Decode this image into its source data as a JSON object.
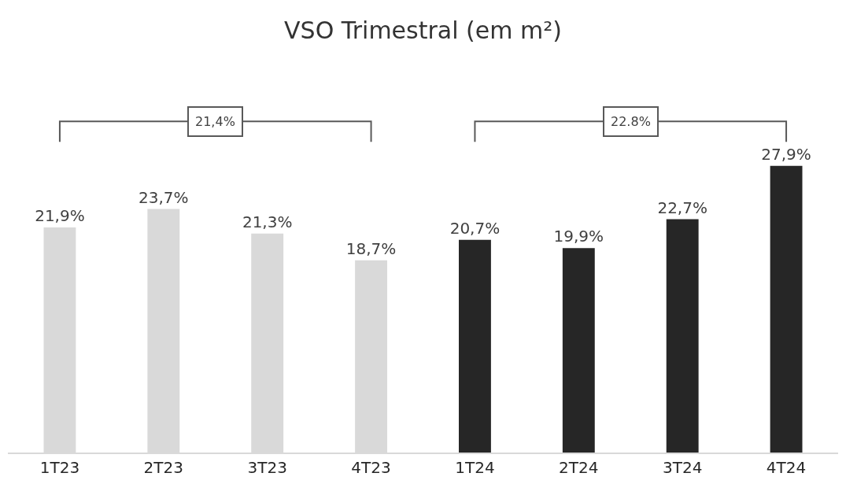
{
  "chart_data": {
    "type": "bar",
    "title": "VSO Trimestral (em m²)",
    "categories": [
      "1T23",
      "2T23",
      "3T23",
      "4T23",
      "1T24",
      "2T24",
      "3T24",
      "4T24"
    ],
    "values": [
      21.9,
      23.7,
      21.3,
      18.7,
      20.7,
      19.9,
      22.7,
      27.9
    ],
    "colors": [
      "#d9d9d9",
      "#d9d9d9",
      "#d9d9d9",
      "#d9d9d9",
      "#262626",
      "#262626",
      "#262626",
      "#262626"
    ],
    "value_labels": [
      "21,9%",
      "23,7%",
      "21,3%",
      "18,7%",
      "20,7%",
      "19,9%",
      "22,7%",
      "27,9%"
    ],
    "tick_labels": "x",
    "legend": false,
    "annotations": [
      "21,4%",
      "22.8%"
    ]
  }
}
